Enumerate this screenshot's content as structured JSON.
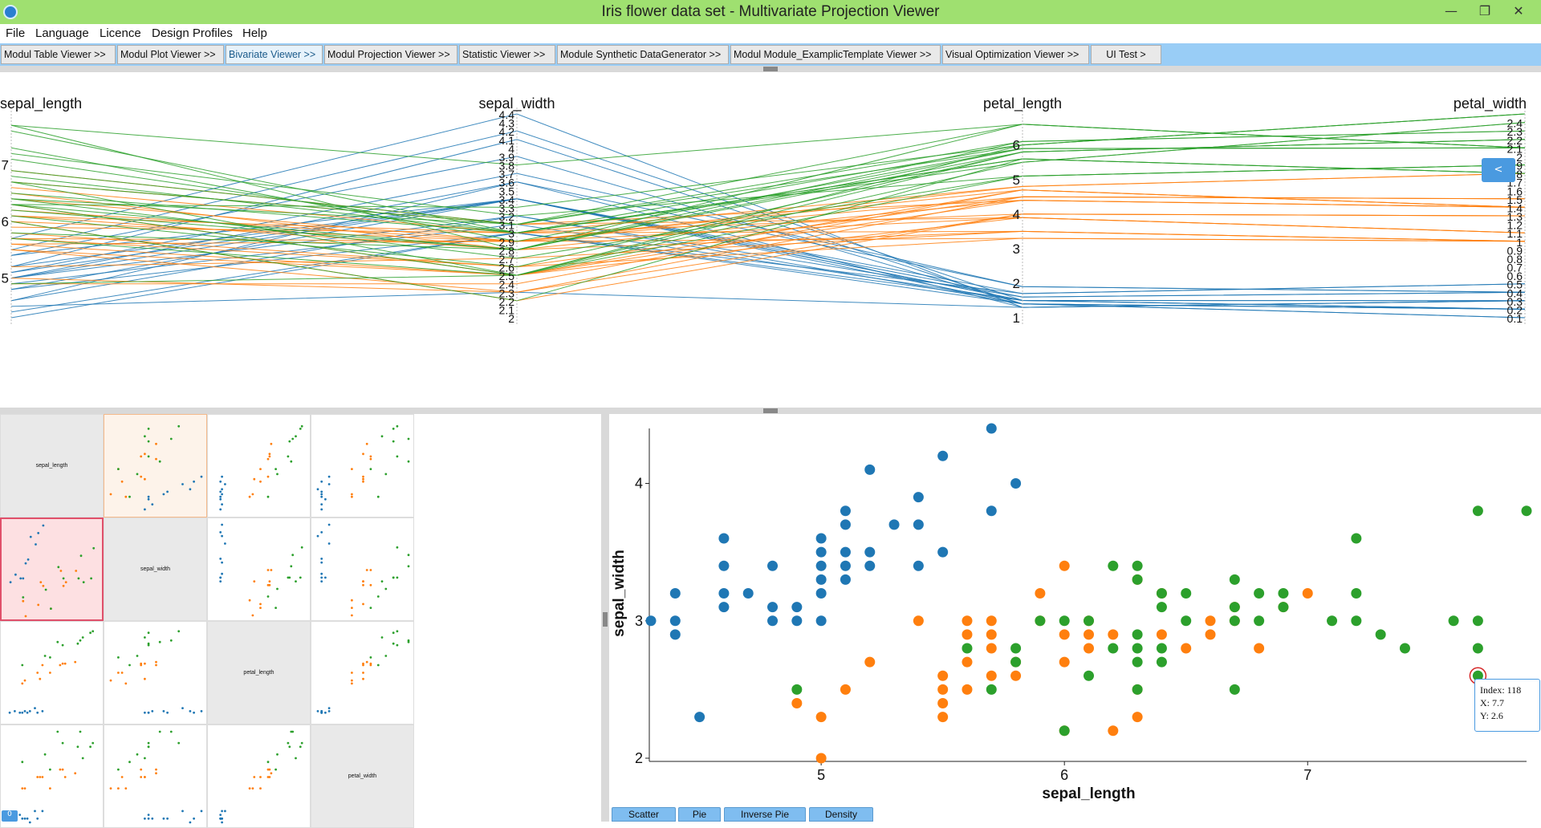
{
  "window": {
    "title": "Iris flower data set - Multivariate Projection Viewer"
  },
  "menu": [
    "File",
    "Language",
    "Licence",
    "Design Profiles",
    "Help"
  ],
  "modules": [
    {
      "label": "Modul Table Viewer >>",
      "active": false
    },
    {
      "label": "Modul Plot Viewer >>",
      "active": false
    },
    {
      "label": "Bivariate Viewer >>",
      "active": true
    },
    {
      "label": "Modul Projection Viewer >>",
      "active": false
    },
    {
      "label": "Statistic Viewer >>",
      "active": false
    },
    {
      "label": "Module Synthetic DataGenerator >>",
      "active": false
    },
    {
      "label": "Modul Module_ExamplicTemplate Viewer >>",
      "active": false
    },
    {
      "label": "Visual Optimization Viewer >>",
      "active": false
    },
    {
      "label": "UI Test >",
      "active": false
    }
  ],
  "colors": {
    "class1": "#1f77b4",
    "class2": "#ff7f0e",
    "class3": "#2ca02c",
    "highlight": "#d62728",
    "titlebar": "#9fe070",
    "accent": "#4a9ae0"
  },
  "parallel": {
    "axes": [
      {
        "name": "sepal_length",
        "min": 4.3,
        "max": 7.9,
        "ticks": [
          "5",
          "6",
          "7"
        ]
      },
      {
        "name": "sepal_width",
        "min": 2.0,
        "max": 4.4,
        "ticks": [
          "2",
          "2.1",
          "2.2",
          "2.3",
          "2.4",
          "2.5",
          "2.6",
          "2.7",
          "2.8",
          "2.9",
          "3",
          "3.1",
          "3.2",
          "3.3",
          "3.4",
          "3.5",
          "3.6",
          "3.7",
          "3.8",
          "3.9",
          "4",
          "4.1",
          "4.2",
          "4.3",
          "4.4"
        ]
      },
      {
        "name": "petal_length",
        "min": 1.0,
        "max": 6.9,
        "ticks": [
          "1",
          "2",
          "3",
          "4",
          "5",
          "6"
        ]
      },
      {
        "name": "petal_width",
        "min": 0.1,
        "max": 2.5,
        "ticks": [
          "0.1",
          "0.2",
          "0.3",
          "0.4",
          "0.5",
          "0.6",
          "0.7",
          "0.8",
          "0.9",
          "1",
          "1.1",
          "1.2",
          "1.3",
          "1.4",
          "1.5",
          "1.6",
          "1.7",
          "1.8",
          "1.9",
          "2",
          "2.1",
          "2.2",
          "2.3",
          "2.4"
        ]
      }
    ],
    "collapse_label": "<"
  },
  "matrix": {
    "labels": [
      "sepal_length",
      "sepal_width",
      "petal_length",
      "petal_width"
    ],
    "badge": "0"
  },
  "scatter": {
    "xlabel": "sepal_length",
    "ylabel": "sepal_width",
    "xlim": [
      4.3,
      7.9
    ],
    "ylim": [
      2.0,
      4.4
    ],
    "xticks": [
      "5",
      "6",
      "7"
    ],
    "yticks": [
      "2",
      "3",
      "4"
    ],
    "highlight": {
      "index": "118",
      "x": "7.7",
      "y": "2.6"
    }
  },
  "tooltip": {
    "line1": "Index: 118",
    "line2": "X: 7.7",
    "line3": "Y: 2.6"
  },
  "tabs": [
    "Scatter",
    "Pie",
    "Inverse Pie",
    "Density"
  ],
  "chart_data": {
    "type": "scatter",
    "xlabel": "sepal_length",
    "ylabel": "sepal_width",
    "xlim": [
      4.3,
      7.9
    ],
    "ylim": [
      2.0,
      4.4
    ],
    "series": [
      {
        "color": "#1f77b4",
        "points": [
          [
            4.3,
            3.0
          ],
          [
            4.4,
            2.9
          ],
          [
            4.4,
            3.0
          ],
          [
            4.4,
            3.2
          ],
          [
            4.5,
            2.3
          ],
          [
            4.6,
            3.1
          ],
          [
            4.6,
            3.2
          ],
          [
            4.6,
            3.4
          ],
          [
            4.6,
            3.6
          ],
          [
            4.7,
            3.2
          ],
          [
            4.8,
            3.0
          ],
          [
            4.8,
            3.1
          ],
          [
            4.8,
            3.4
          ],
          [
            4.9,
            3.0
          ],
          [
            4.9,
            3.1
          ],
          [
            5.0,
            3.0
          ],
          [
            5.0,
            3.2
          ],
          [
            5.0,
            3.3
          ],
          [
            5.0,
            3.4
          ],
          [
            5.0,
            3.5
          ],
          [
            5.0,
            3.6
          ],
          [
            5.1,
            3.3
          ],
          [
            5.1,
            3.4
          ],
          [
            5.1,
            3.5
          ],
          [
            5.1,
            3.7
          ],
          [
            5.1,
            3.8
          ],
          [
            5.2,
            3.4
          ],
          [
            5.2,
            3.5
          ],
          [
            5.2,
            4.1
          ],
          [
            5.3,
            3.7
          ],
          [
            5.4,
            3.4
          ],
          [
            5.4,
            3.7
          ],
          [
            5.4,
            3.9
          ],
          [
            5.5,
            3.5
          ],
          [
            5.5,
            4.2
          ],
          [
            5.7,
            3.8
          ],
          [
            5.7,
            4.4
          ],
          [
            5.8,
            4.0
          ]
        ]
      },
      {
        "color": "#ff7f0e",
        "points": [
          [
            4.9,
            2.4
          ],
          [
            5.0,
            2.0
          ],
          [
            5.0,
            2.3
          ],
          [
            5.1,
            2.5
          ],
          [
            5.2,
            2.7
          ],
          [
            5.4,
            3.0
          ],
          [
            5.5,
            2.3
          ],
          [
            5.5,
            2.4
          ],
          [
            5.5,
            2.5
          ],
          [
            5.5,
            2.6
          ],
          [
            5.6,
            2.5
          ],
          [
            5.6,
            2.7
          ],
          [
            5.6,
            2.9
          ],
          [
            5.6,
            3.0
          ],
          [
            5.7,
            2.6
          ],
          [
            5.7,
            2.8
          ],
          [
            5.7,
            2.9
          ],
          [
            5.7,
            3.0
          ],
          [
            5.8,
            2.6
          ],
          [
            5.8,
            2.7
          ],
          [
            5.9,
            3.0
          ],
          [
            5.9,
            3.2
          ],
          [
            6.0,
            2.2
          ],
          [
            6.0,
            2.7
          ],
          [
            6.0,
            2.9
          ],
          [
            6.0,
            3.4
          ],
          [
            6.1,
            2.8
          ],
          [
            6.1,
            2.9
          ],
          [
            6.1,
            3.0
          ],
          [
            6.2,
            2.2
          ],
          [
            6.2,
            2.9
          ],
          [
            6.3,
            2.3
          ],
          [
            6.3,
            2.5
          ],
          [
            6.3,
            3.3
          ],
          [
            6.4,
            2.9
          ],
          [
            6.4,
            3.2
          ],
          [
            6.5,
            2.8
          ],
          [
            6.6,
            2.9
          ],
          [
            6.6,
            3.0
          ],
          [
            6.7,
            3.0
          ],
          [
            6.7,
            3.1
          ],
          [
            6.8,
            2.8
          ],
          [
            6.9,
            3.1
          ],
          [
            7.0,
            3.2
          ]
        ]
      },
      {
        "color": "#2ca02c",
        "points": [
          [
            4.9,
            2.5
          ],
          [
            5.6,
            2.8
          ],
          [
            5.7,
            2.5
          ],
          [
            5.8,
            2.7
          ],
          [
            5.8,
            2.8
          ],
          [
            5.9,
            3.0
          ],
          [
            6.0,
            2.2
          ],
          [
            6.0,
            3.0
          ],
          [
            6.1,
            2.6
          ],
          [
            6.1,
            3.0
          ],
          [
            6.2,
            2.8
          ],
          [
            6.2,
            3.4
          ],
          [
            6.3,
            2.5
          ],
          [
            6.3,
            2.7
          ],
          [
            6.3,
            2.8
          ],
          [
            6.3,
            2.9
          ],
          [
            6.3,
            3.3
          ],
          [
            6.3,
            3.4
          ],
          [
            6.4,
            2.7
          ],
          [
            6.4,
            2.8
          ],
          [
            6.4,
            3.1
          ],
          [
            6.4,
            3.2
          ],
          [
            6.5,
            3.0
          ],
          [
            6.5,
            3.2
          ],
          [
            6.7,
            2.5
          ],
          [
            6.7,
            3.0
          ],
          [
            6.7,
            3.1
          ],
          [
            6.7,
            3.3
          ],
          [
            6.8,
            3.0
          ],
          [
            6.8,
            3.2
          ],
          [
            6.9,
            3.1
          ],
          [
            6.9,
            3.2
          ],
          [
            7.1,
            3.0
          ],
          [
            7.2,
            3.0
          ],
          [
            7.2,
            3.2
          ],
          [
            7.2,
            3.6
          ],
          [
            7.3,
            2.9
          ],
          [
            7.4,
            2.8
          ],
          [
            7.6,
            3.0
          ],
          [
            7.7,
            2.6
          ],
          [
            7.7,
            2.8
          ],
          [
            7.7,
            3.0
          ],
          [
            7.7,
            3.8
          ],
          [
            7.9,
            3.8
          ]
        ]
      }
    ]
  }
}
